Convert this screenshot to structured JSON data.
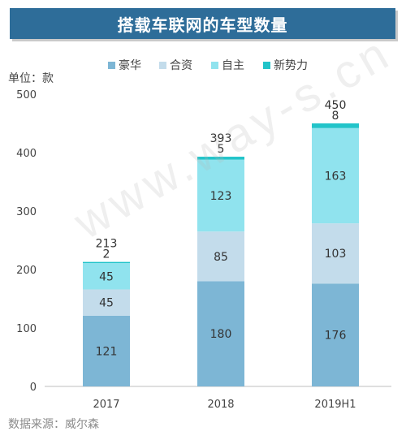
{
  "title": "搭载车联网的车型数量",
  "source": "数据来源：威尔森",
  "watermark": "www.way-s.cn",
  "chart_data": {
    "type": "bar",
    "stacked": true,
    "categories": [
      "2017",
      "2018",
      "2019H1"
    ],
    "series": [
      {
        "name": "豪华",
        "values": [
          121,
          180,
          176
        ],
        "color": "#7db6d5"
      },
      {
        "name": "合资",
        "values": [
          45,
          85,
          103
        ],
        "color": "#c3dceb"
      },
      {
        "name": "自主",
        "values": [
          45,
          123,
          163
        ],
        "color": "#90e3ee"
      },
      {
        "name": "新势力",
        "values": [
          2,
          5,
          8
        ],
        "color": "#22c4c9"
      }
    ],
    "totals": [
      213,
      393,
      450
    ],
    "ylabel": "单位：款",
    "ylim": [
      0,
      500
    ],
    "yticks": [
      0,
      100,
      200,
      300,
      400,
      500
    ],
    "legend_position": "top",
    "grid": false
  }
}
